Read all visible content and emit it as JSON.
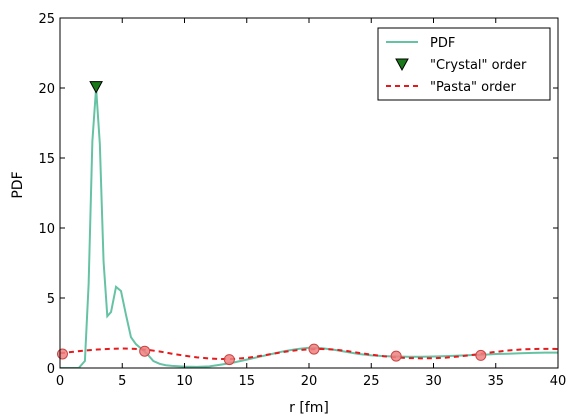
{
  "chart_data": {
    "type": "line",
    "title": "",
    "xlabel": "r [fm]",
    "ylabel": "PDF",
    "xlim": [
      0,
      40
    ],
    "ylim": [
      0,
      25
    ],
    "xticks": [
      0,
      5,
      10,
      15,
      20,
      25,
      30,
      35,
      40
    ],
    "yticks": [
      0,
      5,
      10,
      15,
      20,
      25
    ],
    "legend_position": "top-right",
    "grid": false,
    "series": [
      {
        "name": "PDF",
        "kind": "line",
        "color": "#66c2a5",
        "style": "solid",
        "x": [
          0,
          0.5,
          1.0,
          1.5,
          2.0,
          2.3,
          2.6,
          2.9,
          3.2,
          3.5,
          3.8,
          4.1,
          4.5,
          4.9,
          5.3,
          5.7,
          6.1,
          6.5,
          7.0,
          7.5,
          8.0,
          8.5,
          9.0,
          10.0,
          11.0,
          12.0,
          13.0,
          14.0,
          15.0,
          16.0,
          17.0,
          18.0,
          19.0,
          20.0,
          21.0,
          22.0,
          23.0,
          24.0,
          25.0,
          26.0,
          27.0,
          28.0,
          29.0,
          30.0,
          31.0,
          32.0,
          33.0,
          34.0,
          35.0,
          36.0,
          37.0,
          38.0,
          39.0,
          40.0
        ],
        "y": [
          0,
          0,
          0,
          0,
          0.5,
          6.0,
          16.2,
          20.0,
          16.0,
          7.6,
          3.7,
          4.0,
          5.8,
          5.5,
          3.8,
          2.2,
          1.7,
          1.4,
          1.0,
          0.5,
          0.3,
          0.2,
          0.15,
          0.1,
          0.08,
          0.12,
          0.25,
          0.4,
          0.6,
          0.8,
          1.0,
          1.2,
          1.35,
          1.45,
          1.42,
          1.3,
          1.15,
          1.0,
          0.9,
          0.85,
          0.82,
          0.8,
          0.8,
          0.82,
          0.85,
          0.88,
          0.92,
          0.95,
          1.0,
          1.02,
          1.05,
          1.08,
          1.1,
          1.1
        ]
      },
      {
        "name": "\"Crystal\" order",
        "kind": "marker",
        "marker": "triangle-down",
        "color": "#1a7a1a",
        "x": [
          2.9
        ],
        "y": [
          20.1
        ]
      },
      {
        "name": "\"Pasta\" order",
        "kind": "line",
        "color": "#e41a1c",
        "style": "dashed",
        "x": [
          0,
          1,
          2,
          3,
          4,
          5,
          6,
          7,
          8,
          9,
          10,
          11,
          12,
          13,
          14,
          15,
          16,
          17,
          18,
          19,
          20,
          21,
          22,
          23,
          24,
          25,
          26,
          27,
          28,
          29,
          30,
          31,
          32,
          33,
          34,
          35,
          36,
          37,
          38,
          39,
          40
        ],
        "y": [
          1.05,
          1.15,
          1.25,
          1.32,
          1.37,
          1.39,
          1.37,
          1.3,
          1.18,
          1.02,
          0.88,
          0.76,
          0.68,
          0.64,
          0.65,
          0.72,
          0.85,
          1.0,
          1.15,
          1.27,
          1.34,
          1.36,
          1.32,
          1.22,
          1.08,
          0.95,
          0.84,
          0.76,
          0.71,
          0.69,
          0.7,
          0.74,
          0.82,
          0.92,
          1.04,
          1.15,
          1.25,
          1.32,
          1.36,
          1.37,
          1.36
        ]
      }
    ],
    "circle_markers": {
      "color": "#f08080",
      "stroke": "#c84646",
      "x": [
        0.2,
        6.8,
        13.6,
        20.4,
        27.0,
        33.8
      ],
      "y": [
        1.0,
        1.2,
        0.6,
        1.35,
        0.85,
        0.9
      ]
    }
  }
}
